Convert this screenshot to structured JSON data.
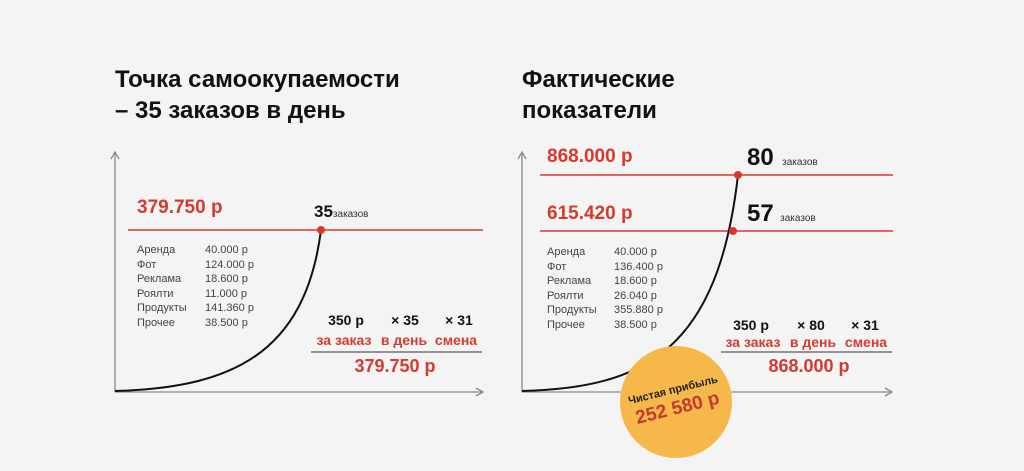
{
  "left": {
    "title_line1": "Точка самоокупаемости",
    "title_line2": "– 35 заказов в день",
    "revenue": "379.750 р",
    "orders_num": "35",
    "orders_word": "заказов",
    "expenses": [
      {
        "label": "Аренда",
        "value": "40.000 р"
      },
      {
        "label": "Фот",
        "value": "124.000 р"
      },
      {
        "label": "Реклама",
        "value": "18.600 р"
      },
      {
        "label": "Роялти",
        "value": "11.000 р"
      },
      {
        "label": "Продукты",
        "value": "141.360 р"
      },
      {
        "label": "Прочее",
        "value": "38.500 р"
      }
    ],
    "calc": {
      "price": "350 р",
      "per_order": "за заказ",
      "count": "× 35",
      "per_day": "в день",
      "shifts": "× 31",
      "shift_word": "смена",
      "total": "379.750 р"
    }
  },
  "right": {
    "title_line1": "Фактические",
    "title_line2": "показатели",
    "revenue_high": "868.000 р",
    "orders_high_num": "80",
    "orders_high_word": "заказов",
    "revenue_low": "615.420 р",
    "orders_low_num": "57",
    "orders_low_word": "заказов",
    "expenses": [
      {
        "label": "Аренда",
        "value": "40.000 р"
      },
      {
        "label": "Фот",
        "value": "136.400 р"
      },
      {
        "label": "Реклама",
        "value": "18.600 р"
      },
      {
        "label": "Роялти",
        "value": "26.040 р"
      },
      {
        "label": "Продукты",
        "value": "355.880 р"
      },
      {
        "label": "Прочее",
        "value": "38.500 р"
      }
    ],
    "calc": {
      "price": "350 р",
      "per_order": "за заказ",
      "count": "× 80",
      "per_day": "в день",
      "shifts": "× 31",
      "shift_word": "смена",
      "total": "868.000 р"
    },
    "profit_label": "Чистая прибыль",
    "profit_value": "252 580 р"
  },
  "colors": {
    "accent": "#d63a2f",
    "badge": "#f7b84b",
    "axis": "#888888",
    "background": "#f4f4f4"
  }
}
